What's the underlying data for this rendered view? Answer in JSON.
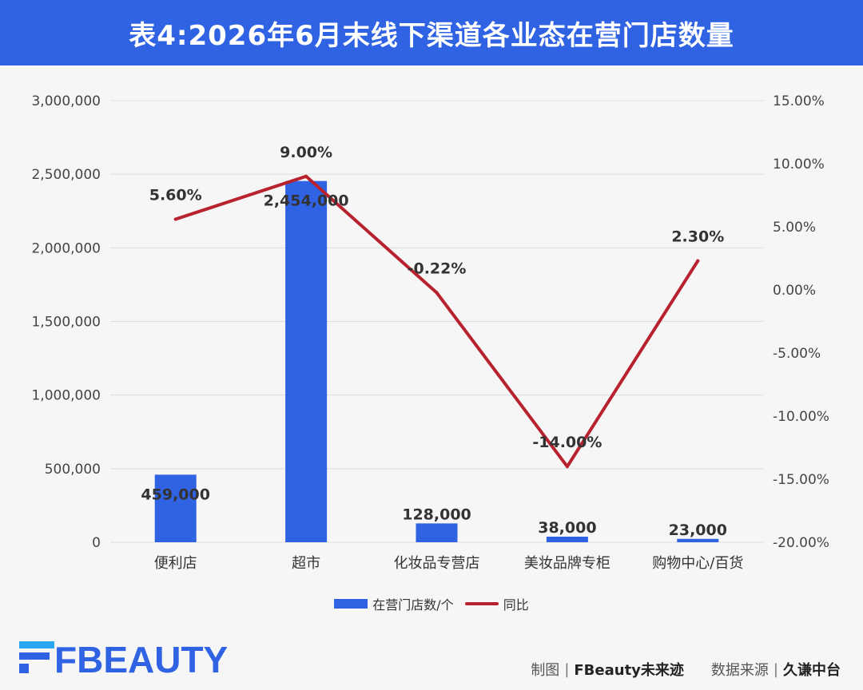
{
  "title": "表4:2026年6月末线下渠道各业态在营门店数量",
  "colors": {
    "header": "#2f63e3",
    "bar": "#2f63e3",
    "line": "#b8222f",
    "grid": "#dddddd"
  },
  "chart_data": {
    "type": "bar",
    "categories": [
      "便利店",
      "超市",
      "化妆品专营店",
      "美妆品牌专柜",
      "购物中心/百货"
    ],
    "series": [
      {
        "name": "在营门店数/个",
        "type": "bar",
        "axis": "left",
        "values": [
          459000,
          2454000,
          128000,
          38000,
          23000
        ],
        "labels": [
          "459,000",
          "2,454,000",
          "128,000",
          "38,000",
          "23,000"
        ]
      },
      {
        "name": "同比",
        "type": "line",
        "axis": "right",
        "values": [
          5.6,
          9.0,
          -0.22,
          -14.0,
          2.3
        ],
        "labels": [
          "5.60%",
          "9.00%",
          "-0.22%",
          "-14.00%",
          "2.30%"
        ]
      }
    ],
    "y_left": {
      "min": 0,
      "max": 3000000,
      "ticks": [
        0,
        500000,
        1000000,
        1500000,
        2000000,
        2500000,
        3000000
      ],
      "tick_labels": [
        "0",
        "500,000",
        "1,000,000",
        "1,500,000",
        "2,000,000",
        "2,500,000",
        "3,000,000"
      ]
    },
    "y_right": {
      "min": -20,
      "max": 15,
      "ticks": [
        -20,
        -15,
        -10,
        -5,
        0,
        5,
        10,
        15
      ],
      "tick_labels": [
        "-20.00%",
        "-15.00%",
        "-10.00%",
        "-5.00%",
        "0.00%",
        "5.00%",
        "10.00%",
        "15.00%"
      ]
    },
    "grid": true,
    "legend_position": "bottom"
  },
  "legend": {
    "bar_label": "在营门店数/个",
    "line_label": "同比"
  },
  "footer": {
    "logo_text": "FBEAUTY",
    "made_by_label": "制图",
    "made_by": "FBeauty未来迹",
    "source_label": "数据来源",
    "source": "久谦中台"
  }
}
